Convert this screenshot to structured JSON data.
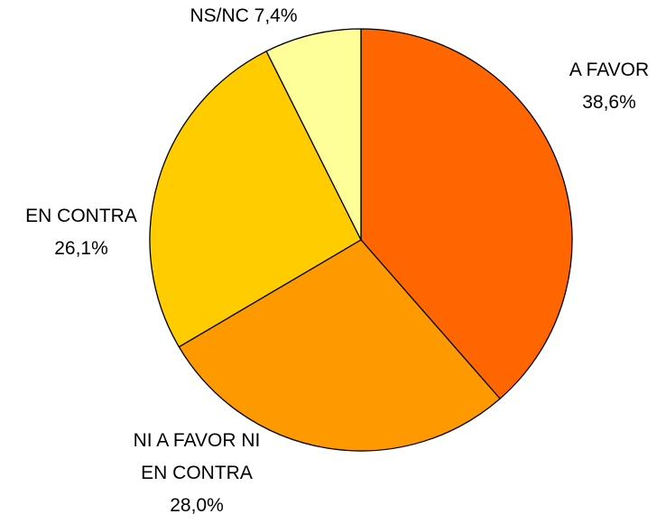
{
  "chart_data": {
    "type": "pie",
    "categories": [
      "A FAVOR",
      "NI A FAVOR NI EN CONTRA",
      "EN CONTRA",
      "NS/NC"
    ],
    "values": [
      38.6,
      28.0,
      26.1,
      7.4
    ],
    "value_labels": [
      "38,6%",
      "28,0%",
      "26,1%",
      "7,4%"
    ],
    "colors": [
      "#ff6600",
      "#ff9900",
      "#ffcc00",
      "#ffff99"
    ]
  }
}
